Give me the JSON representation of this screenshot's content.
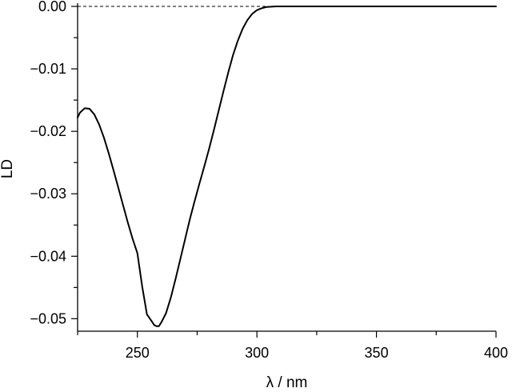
{
  "chart_data": {
    "type": "line",
    "title": "",
    "xlabel": "λ / nm",
    "ylabel": "LD",
    "xlim": [
      225,
      400
    ],
    "ylim": [
      -0.052,
      0.0
    ],
    "grid": false,
    "legend": "none",
    "xticks": [
      250,
      300,
      350,
      400
    ],
    "xtick_labels": [
      "250",
      "300",
      "350",
      "400"
    ],
    "yticks": [
      0.0,
      -0.01,
      -0.02,
      -0.03,
      -0.04,
      -0.05
    ],
    "ytick_labels": [
      "0.00",
      "−0.01",
      "−0.02",
      "−0.03",
      "−0.04",
      "−0.05"
    ],
    "reference_line": {
      "y": 0.0,
      "style": "dashed"
    },
    "series": [
      {
        "color": "#000000",
        "x": [
          225,
          226,
          228,
          230,
          232,
          234,
          236,
          238,
          240,
          242,
          244,
          246,
          248,
          250,
          252,
          254,
          256,
          257,
          258,
          259,
          260,
          262,
          264,
          266,
          268,
          270,
          272,
          274,
          276,
          278,
          280,
          282,
          284,
          286,
          288,
          290,
          292,
          294,
          296,
          298,
          300,
          302,
          304,
          306,
          308,
          310,
          312,
          315,
          318,
          322,
          330,
          340,
          350,
          360,
          370,
          380,
          390,
          400
        ],
        "y": [
          -0.0178,
          -0.017,
          -0.0163,
          -0.0164,
          -0.0173,
          -0.0189,
          -0.021,
          -0.0235,
          -0.0262,
          -0.029,
          -0.0318,
          -0.0346,
          -0.0372,
          -0.0395,
          -0.0448,
          -0.0493,
          -0.0504,
          -0.051,
          -0.0512,
          -0.0512,
          -0.0506,
          -0.0491,
          -0.0466,
          -0.0436,
          -0.0404,
          -0.0372,
          -0.034,
          -0.0311,
          -0.0283,
          -0.0256,
          -0.0228,
          -0.0198,
          -0.0167,
          -0.0136,
          -0.0106,
          -0.0078,
          -0.0055,
          -0.0036,
          -0.0022,
          -0.0012,
          -0.0006,
          -0.0003,
          -0.0001,
          -5e-05,
          0.0,
          0.0,
          0.0,
          0.0,
          0.0,
          0.0,
          0.0,
          0.0,
          0.0,
          0.0,
          0.0,
          0.0,
          0.0,
          0.0
        ]
      }
    ]
  }
}
